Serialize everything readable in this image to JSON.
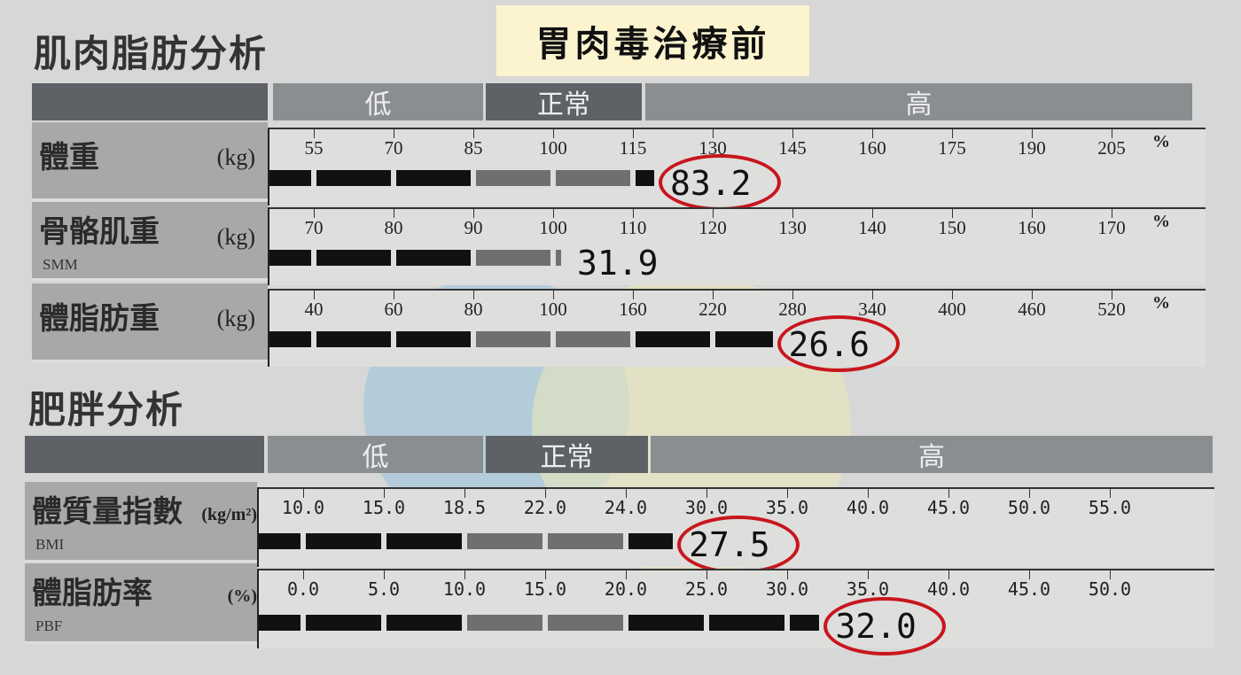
{
  "title": "胃肉毒治療前",
  "colors": {
    "dark_band": "#5e6266",
    "light_band": "#8b8e91",
    "bar_black": "#111111",
    "bar_gray": "#6e6f70",
    "circle": "#c8161d",
    "title_bg": "#fcf4cf"
  },
  "sections": [
    {
      "title": "肌肉脂肪分析",
      "bands": [
        "低",
        "正常",
        "高"
      ],
      "rows": [
        {
          "name": "體重",
          "unit": "(kg)",
          "abbr": "",
          "ticks": [
            "55",
            "70",
            "85",
            "100",
            "115",
            "130",
            "145",
            "160",
            "175",
            "190",
            "205"
          ],
          "tick_unit": "%",
          "value": "83.2",
          "percent": 119,
          "normal_range": [
            85,
            115
          ],
          "circled": true
        },
        {
          "name": "骨骼肌重",
          "unit": "(kg)",
          "abbr": "SMM",
          "ticks": [
            "70",
            "80",
            "90",
            "100",
            "110",
            "120",
            "130",
            "140",
            "150",
            "160",
            "170"
          ],
          "tick_unit": "%",
          "value": "31.9",
          "percent": 101,
          "normal_range": [
            90,
            110
          ],
          "circled": false
        },
        {
          "name": "體脂肪重",
          "unit": "(kg)",
          "abbr": "",
          "ticks": [
            "40",
            "60",
            "80",
            "100",
            "160",
            "220",
            "280",
            "340",
            "400",
            "460",
            "520"
          ],
          "tick_unit": "%",
          "value": "26.6",
          "percent": 265,
          "normal_range": [
            80,
            160
          ],
          "circled": true
        }
      ]
    },
    {
      "title": "肥胖分析",
      "bands": [
        "低",
        "正常",
        "高"
      ],
      "rows": [
        {
          "name": "體質量指數",
          "unit": "(kg/m²)",
          "abbr": "BMI",
          "ticks": [
            "10.0",
            "15.0",
            "18.5",
            "22.0",
            "24.0",
            "30.0",
            "35.0",
            "40.0",
            "45.0",
            "50.0",
            "55.0"
          ],
          "tick_unit": "",
          "value": "27.5",
          "percent": 27.5,
          "normal_range": [
            18.5,
            24.0
          ],
          "circled": true
        },
        {
          "name": "體脂肪率",
          "unit": "(%)",
          "abbr": "PBF",
          "ticks": [
            "0.0",
            "5.0",
            "10.0",
            "15.0",
            "20.0",
            "25.0",
            "30.0",
            "35.0",
            "40.0",
            "45.0",
            "50.0"
          ],
          "tick_unit": "",
          "value": "32.0",
          "percent": 32.0,
          "normal_range": [
            10.0,
            20.0
          ],
          "circled": true
        }
      ]
    }
  ],
  "chart_data": {
    "type": "bar",
    "orientation": "horizontal",
    "categories": [
      "體重",
      "骨骼肌重",
      "體脂肪重",
      "體質量指數",
      "體脂肪率"
    ],
    "values": [
      83.2,
      31.9,
      26.6,
      27.5,
      32.0
    ],
    "units": [
      "kg",
      "kg",
      "kg",
      "kg/m²",
      "%"
    ]
  }
}
